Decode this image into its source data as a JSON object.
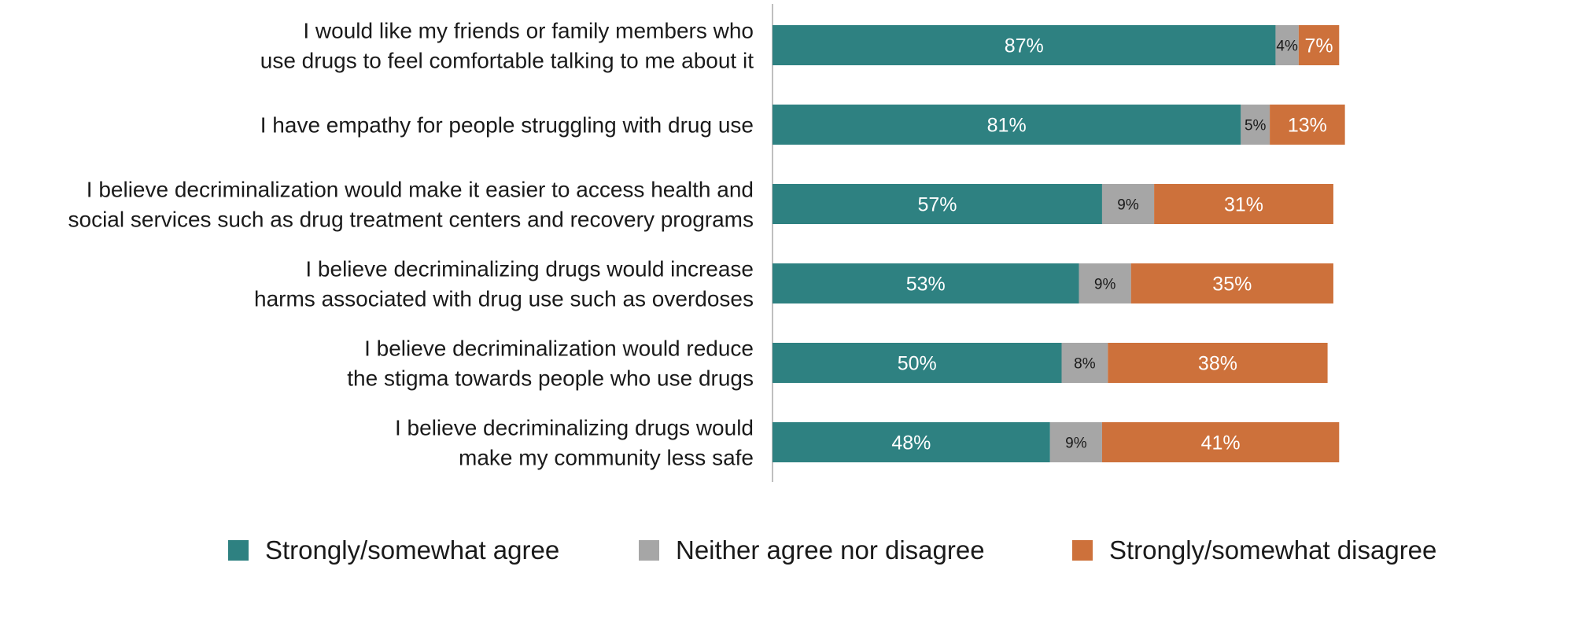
{
  "chart_data": {
    "type": "bar",
    "orientation": "horizontal",
    "stacked": true,
    "title": "",
    "xlabel": "",
    "ylabel": "",
    "xlim": [
      0,
      100
    ],
    "grid": false,
    "legend_position": "bottom",
    "categories": [
      [
        "I would like my friends or family members who",
        "use drugs to feel comfortable talking to me about it"
      ],
      [
        "I have empathy for people struggling with drug use"
      ],
      [
        "I believe decriminalization would make it easier to access health and",
        "social services such as drug treatment centers and recovery programs"
      ],
      [
        "I believe decriminalizing drugs would increase",
        "harms associated with drug use such as overdoses"
      ],
      [
        "I believe decriminalization would reduce",
        "the stigma towards people who use drugs"
      ],
      [
        "I believe decriminalizing drugs would",
        "make my community less safe"
      ]
    ],
    "series": [
      {
        "name": "Strongly/somewhat agree",
        "color": "#2e8181",
        "values": [
          87,
          81,
          57,
          53,
          50,
          48
        ],
        "labels": [
          "87%",
          "81%",
          "57%",
          "53%",
          "50%",
          "48%"
        ]
      },
      {
        "name": "Neither agree nor disagree",
        "color": "#a6a6a6",
        "values": [
          4,
          5,
          9,
          9,
          8,
          9
        ],
        "labels": [
          "4%",
          "5%",
          "9%",
          "9%",
          "8%",
          "9%"
        ]
      },
      {
        "name": "Strongly/somewhat disagree",
        "color": "#cd713b",
        "values": [
          7,
          13,
          31,
          35,
          38,
          41
        ],
        "labels": [
          "7%",
          "13%",
          "31%",
          "35%",
          "38%",
          "41%"
        ]
      }
    ]
  }
}
